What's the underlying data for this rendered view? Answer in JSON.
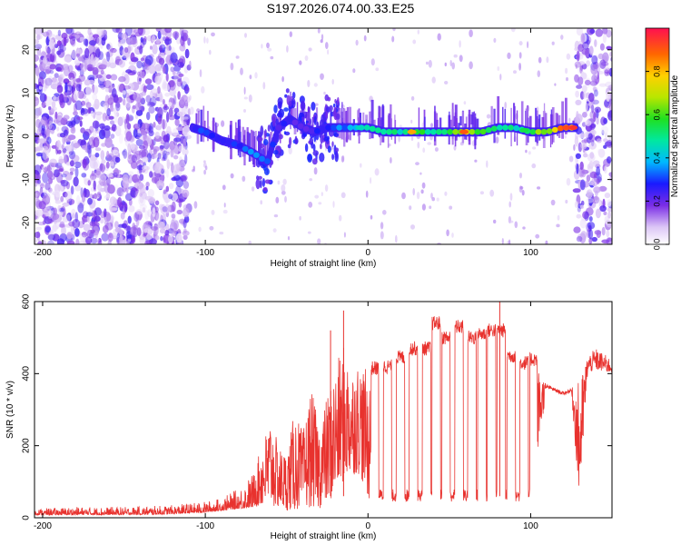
{
  "title": "S197.2026.074.00.33.E25",
  "colors": {
    "snr_line": "#e8322e",
    "axis": "#000000",
    "background": "#ffffff"
  },
  "chart_data": [
    {
      "type": "heatmap",
      "name": "spectrogram",
      "xlabel": "Height of straight line (km)",
      "ylabel": "Frequency (Hz)",
      "xlim": [
        -205,
        150
      ],
      "ylim": [
        -25,
        25
      ],
      "xticks": [
        -200,
        -100,
        0,
        100
      ],
      "xtick_labels": [
        "-200",
        "-100",
        "0",
        "100"
      ],
      "yticks": [
        -20,
        -10,
        0,
        10,
        20
      ],
      "ytick_labels": [
        "-20",
        "-10",
        "0",
        "10",
        "20"
      ],
      "colorbar": {
        "label": "Normalized spectral amplitude",
        "range": [
          0,
          1
        ],
        "ticks": [
          0,
          0.2,
          0.4,
          0.6,
          0.8
        ],
        "tick_labels": [
          "0.0",
          "0.2",
          "0.4",
          "0.6",
          "0.8"
        ]
      },
      "ridge": {
        "description": "dominant frequency track vs height",
        "x": [
          -108,
          -100,
          -90,
          -80,
          -70,
          -62,
          -55,
          -48,
          -40,
          -33,
          -25,
          -15,
          -5,
          0,
          10,
          20,
          30,
          40,
          50,
          60,
          70,
          80,
          90,
          100,
          110,
          120,
          128
        ],
        "y": [
          2,
          1,
          -1,
          -2,
          -4,
          -6,
          2,
          4,
          2,
          1,
          2,
          2,
          2,
          2,
          1,
          1,
          1,
          1,
          1,
          1,
          1,
          2,
          2,
          1,
          1,
          2,
          2
        ],
        "amplitude": [
          0.3,
          0.3,
          0.3,
          0.3,
          0.35,
          0.3,
          0.25,
          0.25,
          0.2,
          0.25,
          0.3,
          0.35,
          0.4,
          0.45,
          0.45,
          0.5,
          0.6,
          0.5,
          0.55,
          0.7,
          0.55,
          0.55,
          0.45,
          0.6,
          0.65,
          0.85,
          0.9
        ]
      },
      "noise_regions": {
        "left_noise_x": [
          -205,
          -110
        ],
        "right_noise_x": [
          128,
          150
        ],
        "noise_amplitude": 0.1
      }
    },
    {
      "type": "line",
      "name": "snr",
      "xlabel": "Height of straight line (km)",
      "ylabel": "SNR (10 * v/v)",
      "xlim": [
        -205,
        150
      ],
      "ylim": [
        0,
        600
      ],
      "xticks": [
        -200,
        -100,
        0,
        100
      ],
      "xtick_labels": [
        "-200",
        "-100",
        "0",
        "100"
      ],
      "yticks": [
        0,
        200,
        400,
        600
      ],
      "ytick_labels": [
        "0",
        "200",
        "400",
        "600"
      ],
      "series": [
        {
          "name": "SNR",
          "envelope": {
            "x": [
              -205,
              -180,
              -150,
              -120,
              -100,
              -90,
              -80,
              -70,
              -60,
              -55,
              -50,
              -45,
              -40,
              -35,
              -30,
              -25,
              -20,
              -15,
              -10,
              -5,
              0,
              10,
              20,
              30,
              40,
              50,
              60,
              70,
              80,
              90,
              100,
              110,
              120,
              125,
              130,
              135,
              140,
              150
            ],
            "y_low": [
              8,
              8,
              8,
              10,
              15,
              20,
              25,
              30,
              30,
              25,
              20,
              20,
              25,
              30,
              25,
              40,
              60,
              100,
              120,
              120,
              50,
              60,
              60,
              60,
              60,
              60,
              50,
              50,
              50,
              50,
              50,
              360,
              340,
              350,
              40,
              400,
              410,
              400
            ],
            "y_high": [
              25,
              30,
              30,
              35,
              45,
              55,
              80,
              130,
              280,
              200,
              180,
              300,
              240,
              360,
              260,
              340,
              420,
              480,
              420,
              440,
              400,
              420,
              460,
              480,
              530,
              520,
              500,
              530,
              540,
              460,
              460,
              370,
              350,
              360,
              380,
              450,
              470,
              440
            ]
          },
          "spikes": [
            {
              "x": -23,
              "y": 520
            },
            {
              "x": -15,
              "y": 575
            },
            {
              "x": 81,
              "y": 600
            }
          ],
          "step_levels": {
            "high_x": [
              4,
              12,
              20,
              28,
              36,
              42,
              48,
              56,
              64,
              70,
              76,
              82,
              88,
              96,
              102
            ],
            "high_y": [
              415,
              420,
              445,
              470,
              470,
              540,
              500,
              530,
              500,
              510,
              520,
              520,
              450,
              430,
              440
            ],
            "low_y": 55
          }
        }
      ]
    }
  ]
}
